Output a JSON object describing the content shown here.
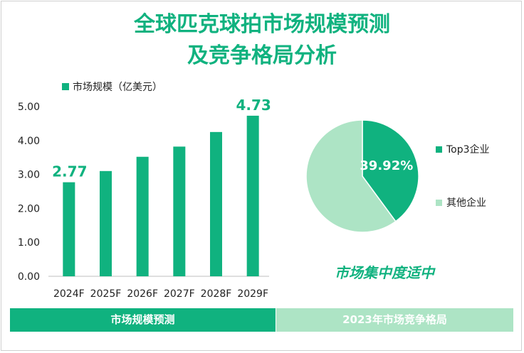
{
  "title": {
    "line1": "全球匹克球拍市场规模预测",
    "line2": "及竞争格局分析"
  },
  "colors": {
    "accent": "#10b27f",
    "light": "#ade4c5",
    "axis_text": "#222222"
  },
  "chart_data": [
    {
      "type": "bar",
      "legend": "市场规模（亿美元）",
      "legend_position": "top-left",
      "categories": [
        "2024F",
        "2025F",
        "2026F",
        "2027F",
        "2028F",
        "2029F"
      ],
      "series": [
        {
          "name": "市场规模（亿美元）",
          "values": [
            2.77,
            3.1,
            3.52,
            3.82,
            4.25,
            4.73
          ]
        }
      ],
      "data_labels": {
        "0": "2.77",
        "5": "4.73"
      },
      "ylim": [
        0,
        5
      ],
      "yticks": [
        "0.00",
        "1.00",
        "2.00",
        "3.00",
        "4.00",
        "5.00"
      ],
      "grid": false
    },
    {
      "type": "pie",
      "slices": [
        {
          "name": "Top3企业",
          "value": 39.92,
          "label": "39.92%",
          "color": "#10b27f"
        },
        {
          "name": "其他企业",
          "value": 60.08,
          "color": "#ade4c5"
        }
      ],
      "legend_position": "right"
    }
  ],
  "conclusion": "市场集中度适中",
  "footer": {
    "left": "市场规模预测",
    "right": "2023年市场竞争格局"
  }
}
